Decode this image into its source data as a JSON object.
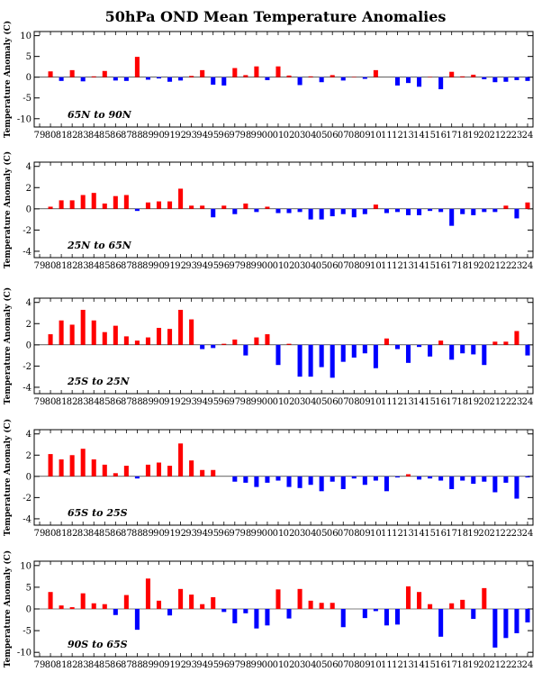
{
  "title": "50hPa OND Mean Temperature Anomalies",
  "colors": {
    "positive": "#ff0000",
    "negative": "#0000ff",
    "axis": "#000000"
  },
  "chart_data": {
    "type": "bar",
    "title": "50hPa OND Mean Temperature Anomalies",
    "categories": [
      "79",
      "80",
      "81",
      "82",
      "83",
      "84",
      "85",
      "86",
      "87",
      "88",
      "89",
      "90",
      "91",
      "92",
      "93",
      "94",
      "95",
      "96",
      "97",
      "98",
      "99",
      "00",
      "01",
      "02",
      "03",
      "04",
      "05",
      "06",
      "07",
      "08",
      "09",
      "10",
      "11",
      "12",
      "13",
      "14",
      "15",
      "16",
      "17",
      "18",
      "19",
      "20",
      "21",
      "22",
      "23",
      "24"
    ],
    "panels": [
      {
        "region": "65N to 90N",
        "ylabel": "Temperature Anomaly (C)",
        "ylim": [
          -12,
          11
        ],
        "yticks": [
          -10,
          -5,
          0,
          5,
          10
        ],
        "values": [
          null,
          1.4,
          -0.9,
          1.7,
          -1.0,
          0.2,
          1.5,
          -0.8,
          -0.9,
          4.9,
          -0.6,
          -0.3,
          -1.1,
          -0.8,
          0.3,
          1.7,
          -1.8,
          -2.0,
          2.2,
          0.5,
          2.6,
          -0.7,
          2.6,
          0.4,
          -1.9,
          0.2,
          -1.2,
          0.5,
          -0.8,
          0.1,
          -0.4,
          1.7,
          0.0,
          -2.0,
          -1.4,
          -2.3,
          0.1,
          -2.9,
          1.3,
          0.2,
          0.6,
          -0.5,
          -1.2,
          -1.1,
          -0.7,
          -0.9
        ]
      },
      {
        "region": "25N to 65N",
        "ylabel": "Temperature Anomaly (C)",
        "ylim": [
          -4.6,
          4.4
        ],
        "yticks": [
          -4,
          -2,
          0,
          2,
          4
        ],
        "values": [
          null,
          0.2,
          0.8,
          0.8,
          1.3,
          1.5,
          0.5,
          1.2,
          1.3,
          -0.2,
          0.6,
          0.7,
          0.7,
          1.9,
          0.3,
          0.3,
          -0.8,
          0.3,
          -0.5,
          0.5,
          -0.3,
          0.2,
          -0.4,
          -0.4,
          -0.3,
          -1.0,
          -1.0,
          -0.7,
          -0.5,
          -0.8,
          -0.5,
          0.4,
          -0.4,
          -0.3,
          -0.6,
          -0.6,
          -0.2,
          -0.3,
          -1.6,
          -0.5,
          -0.6,
          -0.3,
          -0.3,
          0.3,
          -0.9,
          0.6
        ]
      },
      {
        "region": "25S to 25N",
        "ylabel": "Temperature Anomaly (C)",
        "ylim": [
          -4.6,
          4.4
        ],
        "yticks": [
          -4,
          -2,
          0,
          2,
          4
        ],
        "values": [
          null,
          1.0,
          2.3,
          1.9,
          3.3,
          2.3,
          1.2,
          1.8,
          0.8,
          0.4,
          0.7,
          1.6,
          1.5,
          3.3,
          2.4,
          -0.4,
          -0.3,
          0.1,
          0.5,
          -1.0,
          0.7,
          1.0,
          -1.9,
          0.1,
          -3.0,
          -3.0,
          -2.1,
          -3.1,
          -1.6,
          -1.2,
          -0.8,
          -2.2,
          0.6,
          -0.4,
          -1.7,
          -0.2,
          -1.1,
          0.4,
          -1.4,
          -0.8,
          -0.9,
          -1.9,
          0.3,
          0.3,
          1.3,
          -1.0
        ]
      },
      {
        "region": "65S to 25S",
        "ylabel": "Temperature Anomaly (C)",
        "ylim": [
          -4.6,
          4.4
        ],
        "yticks": [
          -4,
          -2,
          0,
          2,
          4
        ],
        "values": [
          null,
          2.1,
          1.6,
          2.0,
          2.6,
          1.6,
          1.1,
          0.3,
          1.0,
          -0.2,
          1.1,
          1.3,
          1.0,
          3.1,
          1.5,
          0.6,
          0.6,
          null,
          -0.5,
          -0.6,
          -1.0,
          -0.6,
          -0.4,
          -1.0,
          -1.1,
          -0.8,
          -1.4,
          -0.5,
          -1.2,
          -0.2,
          -0.8,
          -0.4,
          -1.4,
          -0.1,
          0.2,
          -0.3,
          -0.2,
          -0.4,
          -1.2,
          -0.4,
          -0.7,
          -0.5,
          -1.5,
          -0.6,
          -2.1,
          -0.1
        ]
      },
      {
        "region": "90S to 65S",
        "ylabel": "Temperature Anomaly (C)",
        "ylim": [
          -11,
          11
        ],
        "yticks": [
          -10,
          -5,
          0,
          5,
          10
        ],
        "values": [
          null,
          3.9,
          0.8,
          0.4,
          3.6,
          1.3,
          1.1,
          -1.4,
          3.2,
          -4.8,
          7.0,
          1.9,
          -1.5,
          4.6,
          3.3,
          1.1,
          2.7,
          -0.7,
          -3.3,
          -1.0,
          -4.5,
          -3.8,
          4.5,
          -2.2,
          4.6,
          1.9,
          1.4,
          1.4,
          -4.2,
          0.0,
          -2.1,
          -0.5,
          -3.8,
          -3.6,
          5.2,
          3.9,
          1.1,
          -6.4,
          1.3,
          2.1,
          -2.3,
          4.8,
          -8.9,
          -6.7,
          -5.6,
          -3.1
        ]
      }
    ]
  }
}
